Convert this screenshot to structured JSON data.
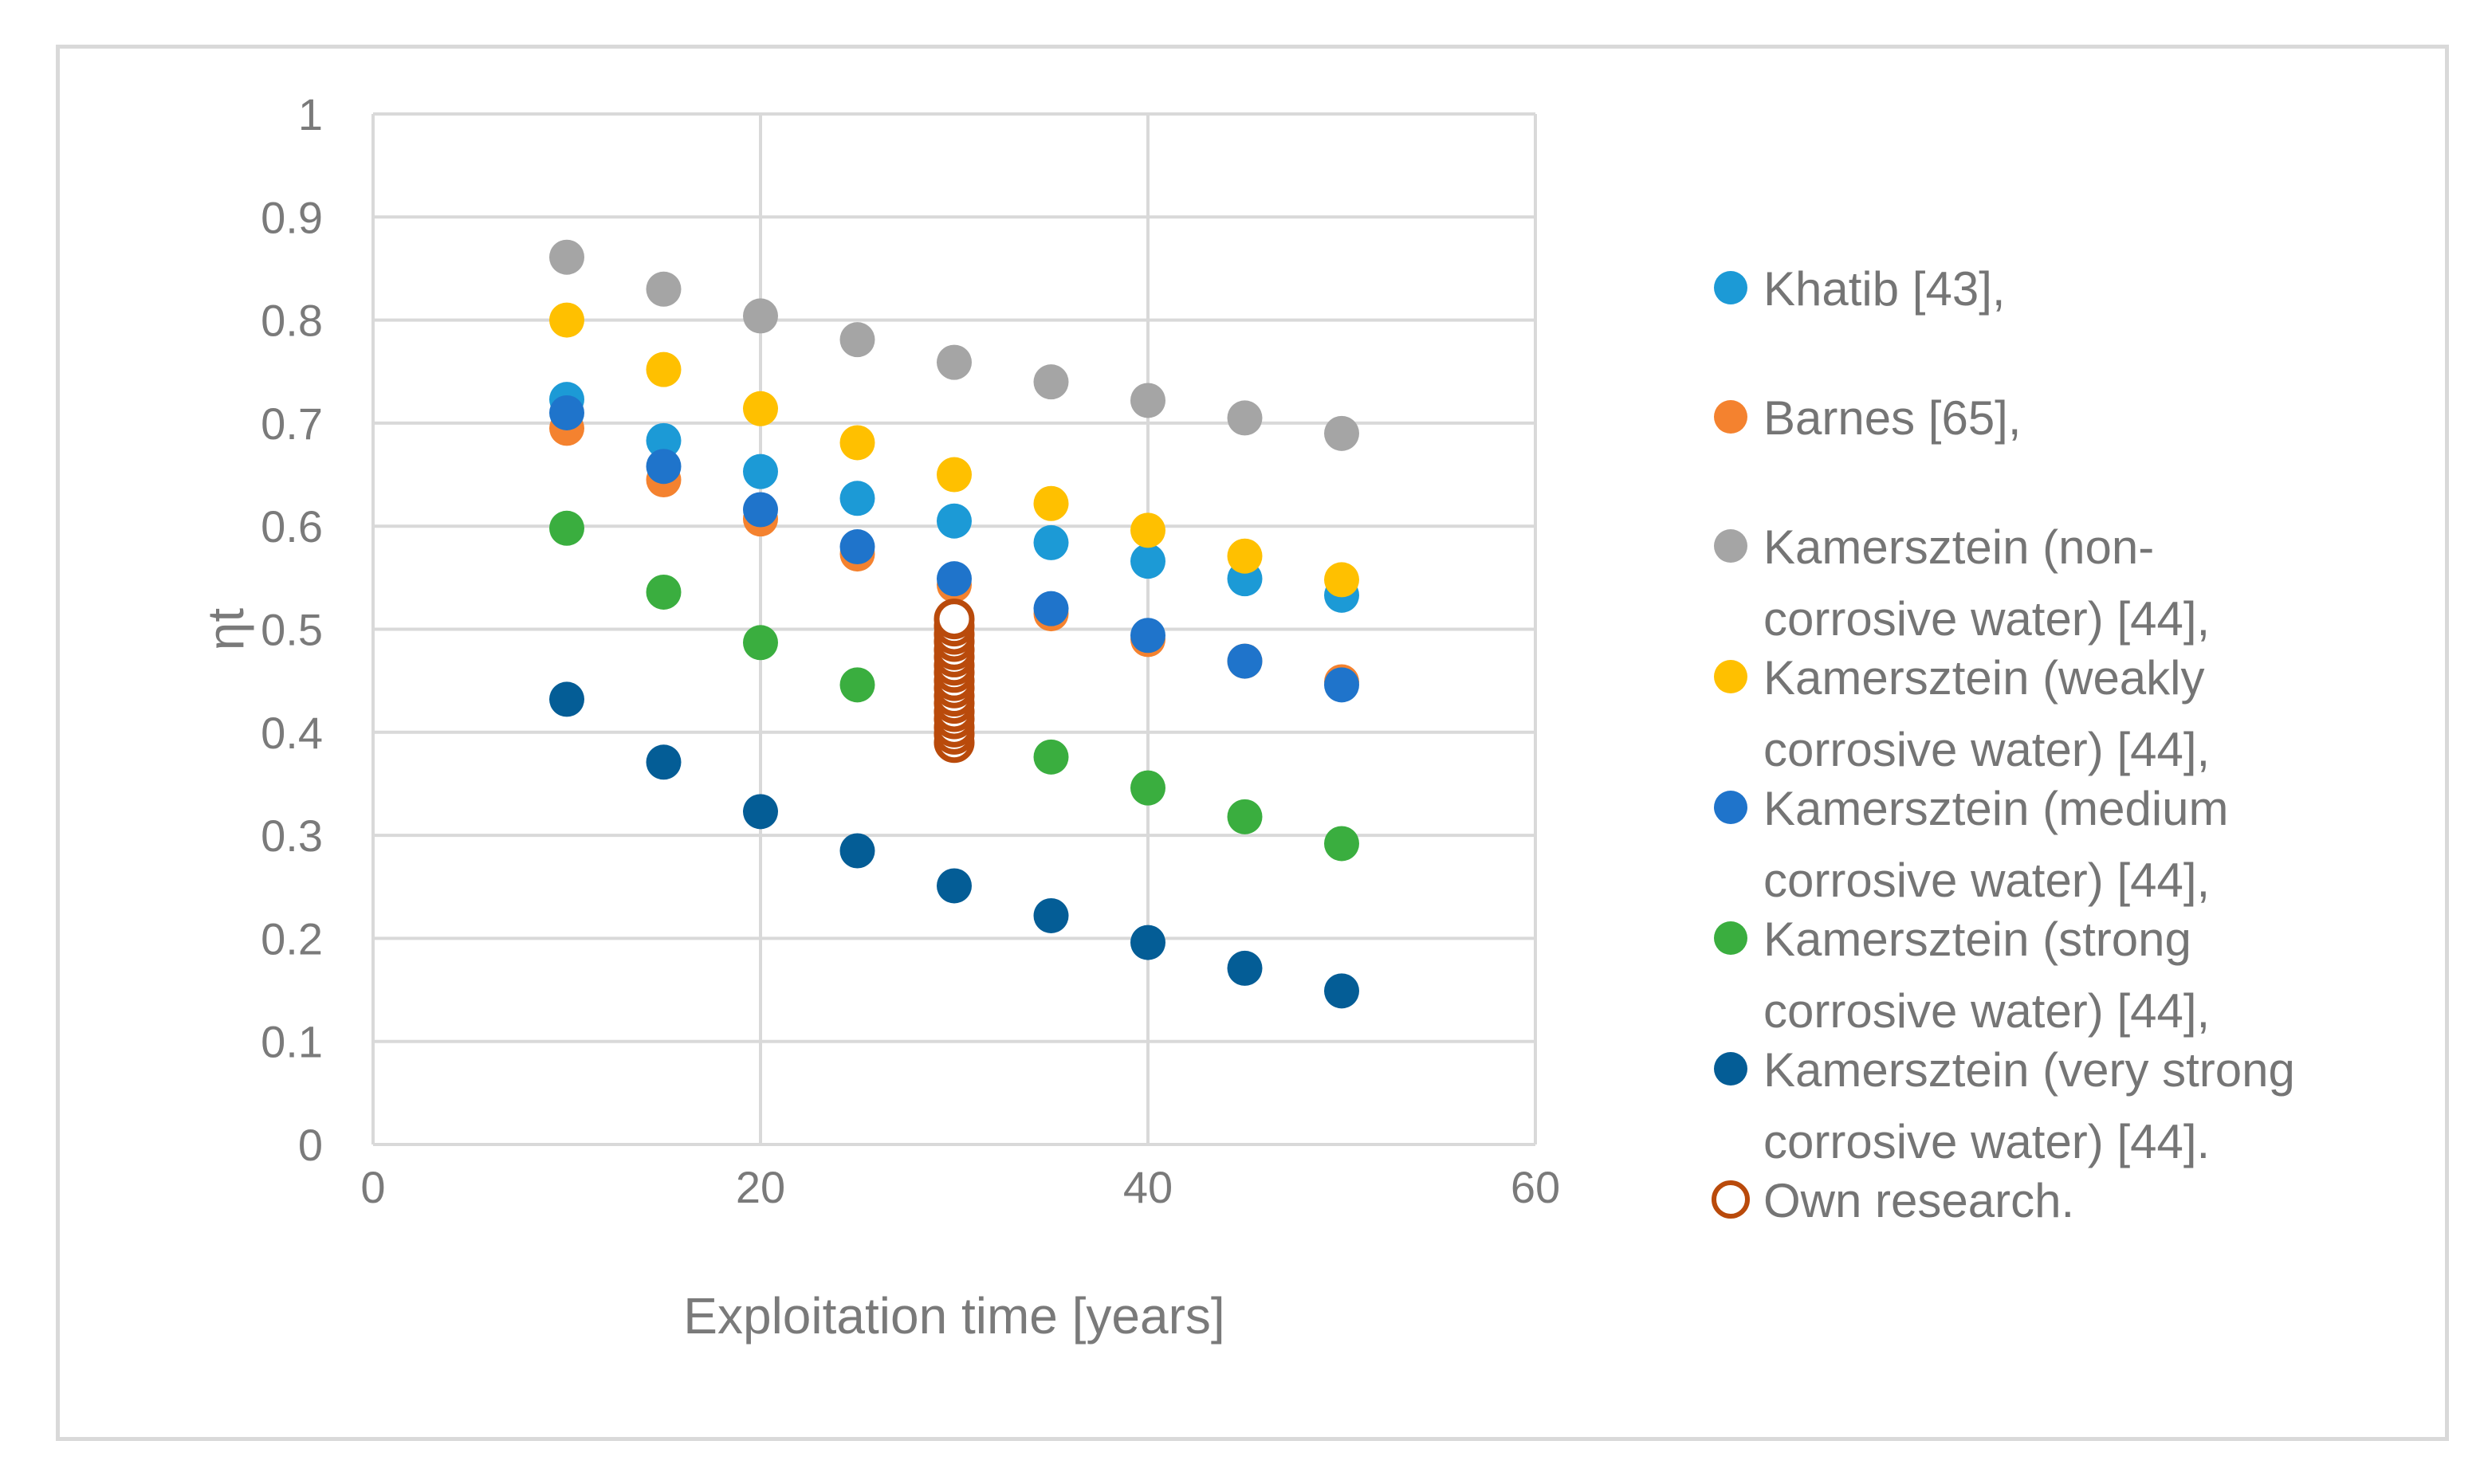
{
  "chart_data": {
    "type": "scatter",
    "title": "",
    "xlabel": "Exploitation time [years]",
    "ylabel": "ηt",
    "xlim": [
      0,
      60
    ],
    "ylim": [
      0,
      1
    ],
    "x_ticks": [
      0,
      20,
      40,
      60
    ],
    "y_ticks": [
      0,
      0.1,
      0.2,
      0.3,
      0.4,
      0.5,
      0.6,
      0.7,
      0.8,
      0.9,
      1
    ],
    "x_tick_labels": [
      "0",
      "20",
      "40",
      "60"
    ],
    "y_tick_labels": [
      "0",
      "0.1",
      "0.2",
      "0.3",
      "0.4",
      "0.5",
      "0.6",
      "0.7",
      "0.8",
      "0.9",
      "1"
    ],
    "grid": true,
    "legend_position": "right",
    "series": [
      {
        "name": "Barnes [65],",
        "color": "#F4822F",
        "marker": "filled",
        "legend_lines": [
          "Barnes [65],"
        ],
        "x": [
          10,
          15,
          20,
          25,
          30,
          35,
          40,
          45,
          50
        ],
        "y": [
          0.695,
          0.645,
          0.607,
          0.573,
          0.543,
          0.515,
          0.49,
          0.469,
          0.449
        ]
      },
      {
        "name": "Khatib [43],",
        "color": "#1C9AD6",
        "marker": "filled",
        "legend_lines": [
          "Khatib [43],"
        ],
        "x": [
          10,
          15,
          20,
          25,
          30,
          35,
          40,
          45,
          50
        ],
        "y": [
          0.723,
          0.683,
          0.653,
          0.627,
          0.605,
          0.584,
          0.566,
          0.549,
          0.533
        ]
      },
      {
        "name": "Kamersztein (non-corrosive water) [44],",
        "color": "#A5A5A5",
        "marker": "filled",
        "legend_lines": [
          "Kamersztein (non-",
          "corrosive water) [44],"
        ],
        "x": [
          10,
          15,
          20,
          25,
          30,
          35,
          40,
          45,
          50
        ],
        "y": [
          0.861,
          0.83,
          0.804,
          0.781,
          0.759,
          0.74,
          0.722,
          0.705,
          0.69
        ]
      },
      {
        "name": "Kamersztein (weakly corrosive water) [44],",
        "color": "#FFC000",
        "marker": "filled",
        "legend_lines": [
          "Kamersztein (weakly",
          "corrosive water) [44],"
        ],
        "x": [
          10,
          15,
          20,
          25,
          30,
          35,
          40,
          45,
          50
        ],
        "y": [
          0.8,
          0.752,
          0.714,
          0.681,
          0.65,
          0.622,
          0.596,
          0.571,
          0.548
        ]
      },
      {
        "name": "Kamersztein (medium corrosive water) [44],",
        "color": "#1F74CB",
        "marker": "filled",
        "legend_lines": [
          "Kamersztein (medium",
          "corrosive water) [44],"
        ],
        "x": [
          10,
          15,
          20,
          25,
          30,
          35,
          40,
          45,
          50
        ],
        "y": [
          0.71,
          0.658,
          0.616,
          0.58,
          0.549,
          0.52,
          0.494,
          0.469,
          0.446
        ]
      },
      {
        "name": "Kamersztein (strong corrosive water) [44],",
        "color": "#3AAE3F",
        "marker": "filled",
        "legend_lines": [
          "Kamersztein (strong",
          "corrosive water) [44],"
        ],
        "x": [
          10,
          15,
          20,
          25,
          30,
          35,
          40,
          45,
          50
        ],
        "y": [
          0.598,
          0.536,
          0.487,
          0.446,
          0.41,
          0.376,
          0.346,
          0.318,
          0.292
        ]
      },
      {
        "name": "Kamersztein (very strong corrosive water) [44].",
        "color": "#045D96",
        "marker": "filled",
        "legend_lines": [
          "Kamersztein (very strong",
          "corrosive water) [44]."
        ],
        "x": [
          10,
          15,
          20,
          25,
          30,
          35,
          40,
          45,
          50
        ],
        "y": [
          0.432,
          0.371,
          0.323,
          0.285,
          0.251,
          0.222,
          0.196,
          0.171,
          0.149
        ]
      },
      {
        "name": "Own research.",
        "color": "#B94A0B",
        "marker": "hollow",
        "legend_lines": [
          "Own research."
        ],
        "x": [
          30,
          30,
          30,
          30,
          30,
          30,
          30,
          30,
          30,
          30,
          30,
          30,
          30,
          30,
          30,
          30,
          30
        ],
        "y": [
          0.39,
          0.398,
          0.405,
          0.413,
          0.42,
          0.428,
          0.435,
          0.443,
          0.45,
          0.458,
          0.465,
          0.473,
          0.48,
          0.488,
          0.495,
          0.503,
          0.51
        ]
      }
    ],
    "legend_order": [
      1,
      0,
      2,
      3,
      4,
      5,
      6,
      7
    ]
  }
}
